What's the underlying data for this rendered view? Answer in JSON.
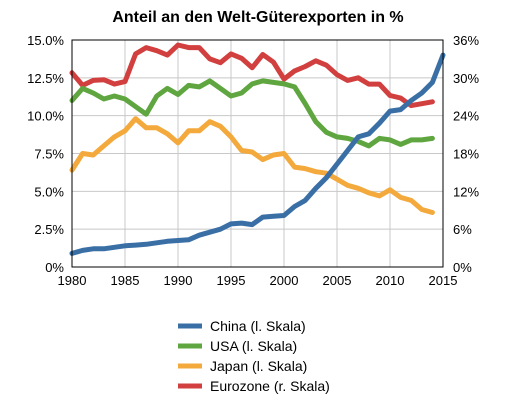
{
  "chart_data": {
    "type": "line",
    "title": "Anteil an den Welt-Güterexporten in %",
    "xlabel": "",
    "ylabel": "",
    "xlim": [
      1980,
      2015
    ],
    "ylim_left": [
      0,
      15
    ],
    "ylim_right": [
      0,
      36
    ],
    "x_ticks": [
      1980,
      1985,
      1990,
      1995,
      2000,
      2005,
      2010,
      2015
    ],
    "x_tick_labels": [
      "1980",
      "1985",
      "1990",
      "1995",
      "2000",
      "2005",
      "2010",
      "2015"
    ],
    "y_left_ticks": [
      0,
      2.5,
      5,
      7.5,
      10,
      12.5,
      15
    ],
    "y_left_tick_labels": [
      "0%",
      "2.5%",
      "5.0%",
      "7.5%",
      "10.0%",
      "12.5%",
      "15.0%"
    ],
    "y_right_ticks": [
      0,
      6,
      12,
      18,
      24,
      30,
      36
    ],
    "y_right_tick_labels": [
      "0%",
      "6%",
      "12%",
      "18%",
      "24%",
      "30%",
      "36%"
    ],
    "grid": true,
    "legend_position": "bottom",
    "series": [
      {
        "name": "China (l. Skala)",
        "axis": "left",
        "color": "#3a6fa6",
        "x": [
          1980,
          1981,
          1982,
          1983,
          1984,
          1985,
          1986,
          1987,
          1988,
          1989,
          1990,
          1991,
          1992,
          1993,
          1994,
          1995,
          1996,
          1997,
          1998,
          1999,
          2000,
          2001,
          2002,
          2003,
          2004,
          2005,
          2006,
          2007,
          2008,
          2009,
          2010,
          2011,
          2012,
          2013,
          2014,
          2015
        ],
        "values": [
          0.9,
          1.1,
          1.2,
          1.2,
          1.3,
          1.4,
          1.45,
          1.5,
          1.6,
          1.7,
          1.75,
          1.8,
          2.1,
          2.3,
          2.5,
          2.85,
          2.9,
          2.8,
          3.3,
          3.35,
          3.4,
          4.0,
          4.4,
          5.2,
          5.9,
          6.8,
          7.7,
          8.6,
          8.8,
          9.5,
          10.3,
          10.4,
          11.0,
          11.5,
          12.2,
          14.0
        ]
      },
      {
        "name": "USA (l. Skala)",
        "axis": "left",
        "color": "#5fa640",
        "x": [
          1980,
          1981,
          1982,
          1983,
          1984,
          1985,
          1986,
          1987,
          1988,
          1989,
          1990,
          1991,
          1992,
          1993,
          1994,
          1995,
          1996,
          1997,
          1998,
          1999,
          2000,
          2001,
          2002,
          2003,
          2004,
          2005,
          2006,
          2007,
          2008,
          2009,
          2010,
          2011,
          2012,
          2013,
          2014
        ],
        "values": [
          11.0,
          11.8,
          11.5,
          11.1,
          11.3,
          11.1,
          10.6,
          10.1,
          11.3,
          11.8,
          11.4,
          12.0,
          11.9,
          12.3,
          11.8,
          11.3,
          11.5,
          12.1,
          12.3,
          12.2,
          12.1,
          11.9,
          10.8,
          9.6,
          8.9,
          8.6,
          8.5,
          8.3,
          8.0,
          8.5,
          8.4,
          8.1,
          8.4,
          8.4,
          8.5
        ]
      },
      {
        "name": "Japan (l. Skala)",
        "axis": "left",
        "color": "#f3a93c",
        "x": [
          1980,
          1981,
          1982,
          1983,
          1984,
          1985,
          1986,
          1987,
          1988,
          1989,
          1990,
          1991,
          1992,
          1993,
          1994,
          1995,
          1996,
          1997,
          1998,
          1999,
          2000,
          2001,
          2002,
          2003,
          2004,
          2005,
          2006,
          2007,
          2008,
          2009,
          2010,
          2011,
          2012,
          2013,
          2014
        ],
        "values": [
          6.4,
          7.5,
          7.4,
          8.0,
          8.6,
          9.0,
          9.8,
          9.2,
          9.2,
          8.8,
          8.2,
          9.0,
          9.0,
          9.6,
          9.3,
          8.6,
          7.7,
          7.6,
          7.1,
          7.4,
          7.5,
          6.6,
          6.5,
          6.3,
          6.2,
          5.8,
          5.4,
          5.2,
          4.9,
          4.7,
          5.1,
          4.6,
          4.4,
          3.8,
          3.6
        ]
      },
      {
        "name": "Eurozone (r. Skala)",
        "axis": "right",
        "color": "#d23f3f",
        "x": [
          1980,
          1981,
          1982,
          1983,
          1984,
          1985,
          1986,
          1987,
          1988,
          1989,
          1990,
          1991,
          1992,
          1993,
          1994,
          1995,
          1996,
          1997,
          1998,
          1999,
          2000,
          2001,
          2002,
          2003,
          2004,
          2005,
          2006,
          2007,
          2008,
          2009,
          2010,
          2011,
          2012,
          2013,
          2014
        ],
        "values": [
          30.8,
          28.8,
          29.6,
          29.7,
          29.0,
          29.4,
          33.8,
          34.8,
          34.3,
          33.6,
          35.2,
          34.8,
          34.8,
          33.0,
          32.4,
          33.8,
          33.1,
          31.6,
          33.7,
          32.5,
          29.8,
          31.1,
          31.8,
          32.7,
          32.0,
          30.5,
          29.6,
          30.0,
          29.0,
          29.0,
          27.2,
          26.8,
          25.6,
          25.9,
          26.2
        ]
      }
    ]
  }
}
